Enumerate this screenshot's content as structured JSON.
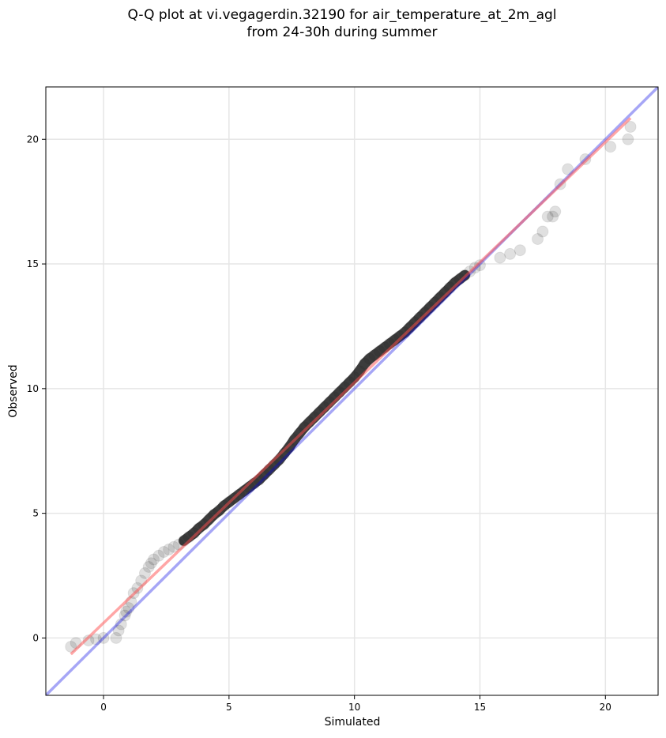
{
  "title_line1": "Q-Q plot at vi.vegagerdin.32190 for air_temperature_at_2m_agl",
  "title_line2": "from 24-30h during summer",
  "chart_data": {
    "type": "scatter",
    "title": "Q-Q plot at vi.vegagerdin.32190 for air_temperature_at_2m_agl\nfrom 24-30h during summer",
    "xlabel": "Simulated",
    "ylabel": "Observed",
    "xlim": [
      -2.3,
      22.1
    ],
    "ylim": [
      -2.3,
      22.1
    ],
    "xticks": [
      0,
      5,
      10,
      15,
      20
    ],
    "yticks": [
      0,
      5,
      10,
      15,
      20
    ],
    "grid": true,
    "colors": {
      "points": "#000000",
      "identity_line": "#0000e6",
      "fit_line": "#ff4d4d"
    },
    "series": [
      {
        "x": [
          -1.3,
          -1.1,
          -0.6,
          -0.3,
          0.0,
          0.5,
          0.6,
          0.7,
          0.85,
          0.9,
          1.0,
          1.1,
          1.2,
          1.35,
          1.5,
          1.65,
          1.8,
          1.9,
          2.0,
          2.2,
          2.4,
          2.6,
          2.8,
          3.0,
          3.2,
          3.4,
          3.6,
          3.8,
          4.0,
          4.2,
          4.4,
          4.6,
          4.8,
          5.0,
          5.2,
          5.4,
          5.6,
          5.8,
          6.0,
          6.2,
          6.4,
          6.6,
          6.8,
          7.0,
          7.2,
          7.4,
          7.6,
          7.8,
          8.0,
          8.2,
          8.4,
          8.6,
          8.8,
          9.0,
          9.2,
          9.4,
          9.6,
          9.8,
          10.0,
          10.2,
          10.4,
          10.6,
          10.8,
          11.0,
          11.2,
          11.4,
          11.6,
          11.8,
          12.0,
          12.2,
          12.4,
          12.6,
          12.8,
          13.0,
          13.2,
          13.4,
          13.6,
          13.8,
          14.0,
          14.2,
          14.4,
          14.6,
          14.8,
          15.0,
          15.8,
          16.2,
          16.6,
          17.3,
          17.5,
          17.7,
          17.9,
          18.0,
          18.2,
          18.5,
          19.2,
          20.2,
          20.9,
          21.0
        ],
        "y": [
          -0.35,
          -0.2,
          -0.1,
          -0.05,
          0.0,
          0.0,
          0.3,
          0.55,
          0.9,
          1.05,
          1.2,
          1.45,
          1.8,
          2.0,
          2.3,
          2.6,
          2.85,
          3.0,
          3.15,
          3.3,
          3.45,
          3.55,
          3.65,
          3.75,
          3.9,
          4.05,
          4.2,
          4.4,
          4.55,
          4.75,
          4.95,
          5.1,
          5.3,
          5.45,
          5.6,
          5.75,
          5.9,
          6.05,
          6.2,
          6.35,
          6.55,
          6.75,
          6.95,
          7.15,
          7.4,
          7.65,
          7.95,
          8.2,
          8.45,
          8.65,
          8.85,
          9.05,
          9.25,
          9.45,
          9.65,
          9.85,
          10.05,
          10.25,
          10.45,
          10.7,
          11.0,
          11.2,
          11.35,
          11.5,
          11.65,
          11.8,
          11.95,
          12.1,
          12.25,
          12.45,
          12.65,
          12.85,
          13.05,
          13.25,
          13.45,
          13.65,
          13.85,
          14.05,
          14.25,
          14.4,
          14.55,
          14.7,
          14.85,
          14.95,
          15.25,
          15.4,
          15.55,
          16.0,
          16.3,
          16.9,
          16.9,
          17.1,
          18.2,
          18.8,
          19.2,
          19.7,
          20.0,
          20.5
        ]
      }
    ],
    "lines": [
      {
        "kind": "identity",
        "x": [
          -2.3,
          22.1
        ],
        "y": [
          -2.3,
          22.1
        ]
      },
      {
        "kind": "fit",
        "x": [
          -1.3,
          21.0
        ],
        "y": [
          -0.65,
          20.85
        ]
      }
    ]
  }
}
